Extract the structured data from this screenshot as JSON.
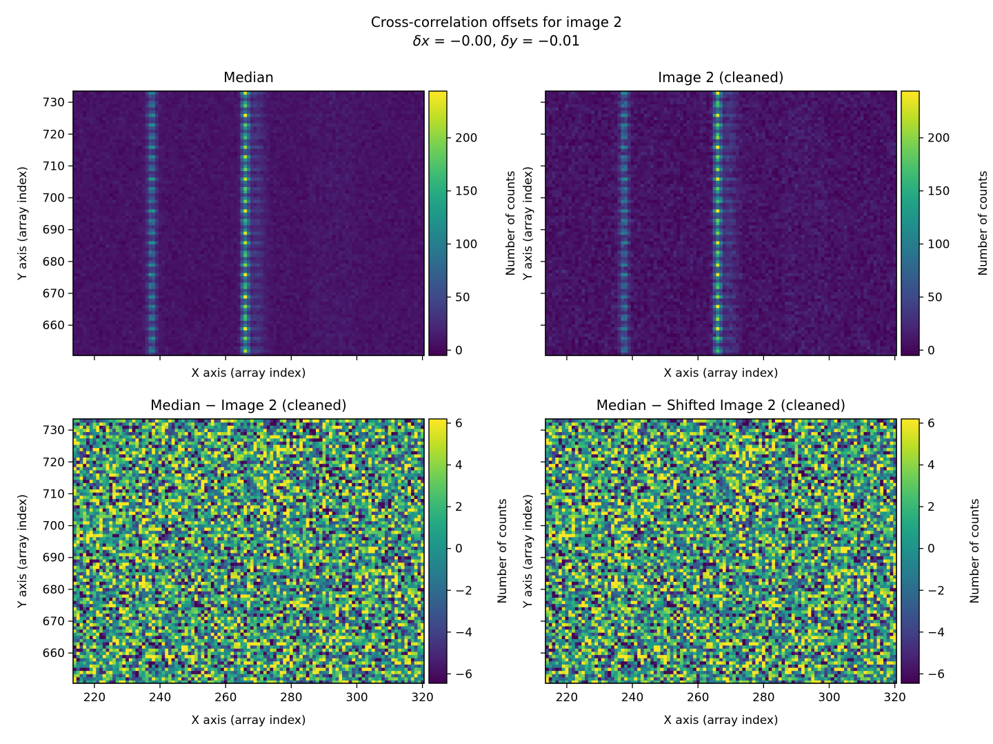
{
  "suptitle": "Cross-correlation offsets for image 2",
  "subtitle": "δx = −0.00, δy = −0.01",
  "subtitle_parts": {
    "dx_label": "δx",
    "dx_value": "−0.00",
    "dy_label": "δy",
    "dy_value": "−0.01"
  },
  "chart_data": [
    {
      "type": "heatmap",
      "title": "Median",
      "xlabel": "X axis (array index)",
      "ylabel": "Y axis (array index)",
      "xlim": [
        213.5,
        320.5
      ],
      "ylim": [
        650.5,
        733.5
      ],
      "xticks": [
        220,
        240,
        260,
        280,
        300,
        320
      ],
      "xtick_labels_shown": false,
      "yticks": [
        660,
        670,
        680,
        690,
        700,
        710,
        720,
        730
      ],
      "ytick_labels": [
        "660",
        "670",
        "680",
        "690",
        "700",
        "710",
        "720",
        "730"
      ],
      "colormap": "viridis",
      "colorbar": {
        "label": "Number of counts",
        "range": [
          -5,
          244
        ],
        "ticks": [
          0,
          50,
          100,
          150,
          200
        ],
        "tick_labels": [
          "0",
          "50",
          "100",
          "150",
          "200"
        ]
      },
      "model": {
        "background": 8,
        "noise": 4,
        "bands": [
          {
            "x": 237.5,
            "peak": 110
          },
          {
            "x": 266,
            "peak": 215
          }
        ],
        "spot_period_y": 3.35,
        "spot_phase_y": 652.4
      }
    },
    {
      "type": "heatmap",
      "title": "Image 2 (cleaned)",
      "xlabel": "X axis (array index)",
      "ylabel": "Y axis (array index)",
      "xlim": [
        213.5,
        320.5
      ],
      "ylim": [
        650.5,
        733.5
      ],
      "xticks": [
        220,
        240,
        260,
        280,
        300,
        320
      ],
      "xtick_labels_shown": false,
      "yticks": [
        660,
        670,
        680,
        690,
        700,
        710,
        720,
        730
      ],
      "ytick_labels_shown": false,
      "colormap": "viridis",
      "colorbar": {
        "label": "Number of counts",
        "range": [
          -5,
          244
        ],
        "ticks": [
          0,
          50,
          100,
          150,
          200
        ],
        "tick_labels": [
          "0",
          "50",
          "100",
          "150",
          "200"
        ]
      },
      "model": {
        "background": 8,
        "noise": 7,
        "bands": [
          {
            "x": 237.5,
            "peak": 105
          },
          {
            "x": 266,
            "peak": 220
          }
        ],
        "spot_period_y": 3.35,
        "spot_phase_y": 652.4
      }
    },
    {
      "type": "heatmap",
      "title": "Median − Image 2 (cleaned)",
      "xlabel": "X axis (array index)",
      "ylabel": "Y axis (array index)",
      "xlim": [
        213.5,
        320.5
      ],
      "ylim": [
        650.5,
        733.5
      ],
      "xticks": [
        220,
        240,
        260,
        280,
        300,
        320
      ],
      "xtick_labels": [
        "220",
        "240",
        "260",
        "280",
        "300",
        "320"
      ],
      "yticks": [
        660,
        670,
        680,
        690,
        700,
        710,
        720,
        730
      ],
      "ytick_labels": [
        "660",
        "670",
        "680",
        "690",
        "700",
        "710",
        "720",
        "730"
      ],
      "colormap": "viridis",
      "colorbar": {
        "label": "Number of counts",
        "range": [
          -6.45,
          6.2
        ],
        "ticks": [
          -6,
          -4,
          -2,
          0,
          2,
          4,
          6
        ],
        "tick_labels": [
          "−6",
          "−4",
          "−2",
          "0",
          "2",
          "4",
          "6"
        ]
      },
      "model": {
        "mean": 0.5,
        "noise": 4.2
      }
    },
    {
      "type": "heatmap",
      "title": "Median − Shifted Image 2 (cleaned)",
      "xlabel": "X axis (array index)",
      "ylabel": "Y axis (array index)",
      "xlim": [
        213.5,
        320.5
      ],
      "ylim": [
        650.5,
        733.5
      ],
      "xticks": [
        220,
        240,
        260,
        280,
        300,
        320
      ],
      "xtick_labels": [
        "220",
        "240",
        "260",
        "280",
        "300",
        "320"
      ],
      "yticks": [
        660,
        670,
        680,
        690,
        700,
        710,
        720,
        730
      ],
      "ytick_labels_shown": false,
      "colormap": "viridis",
      "colorbar": {
        "label": "Number of counts",
        "range": [
          -6.45,
          6.2
        ],
        "ticks": [
          -6,
          -4,
          -2,
          0,
          2,
          4,
          6
        ],
        "tick_labels": [
          "−6",
          "−4",
          "−2",
          "0",
          "2",
          "4",
          "6"
        ]
      },
      "model": {
        "mean": 0.5,
        "noise": 4.2
      }
    }
  ]
}
